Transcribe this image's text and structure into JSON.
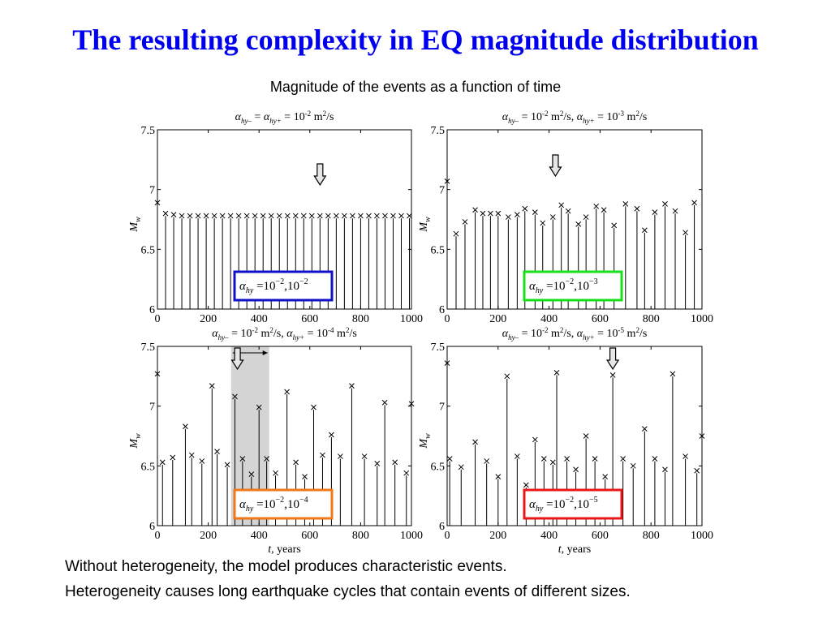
{
  "slide": {
    "title": "The resulting complexity in EQ magnitude distribution",
    "subtitle": "Magnitude of the events as a function of time",
    "captions": [
      "Without heterogeneity, the model produces characteristic events.",
      "Heterogeneity causes long earthquake cycles that contain events of different sizes."
    ]
  },
  "shared_axes": {
    "ylabel": "M",
    "ylabel_sub": "w",
    "xlabel": "t, years",
    "xticks": [
      0,
      200,
      400,
      600,
      800,
      1000
    ],
    "yticks": [
      "6",
      "6.5",
      "7",
      "7.5"
    ],
    "xlim": [
      0,
      1000
    ],
    "ylim": [
      6,
      7.5
    ],
    "label_var": "α",
    "label_sub_minus": "hy–",
    "label_sub_plus": "hy+",
    "box_var_sub": "hy",
    "box_base": "10"
  },
  "chart_data": [
    {
      "type": "scatter",
      "style": "stem",
      "marker": "x",
      "title_parts": {
        "mode": "equal",
        "value": "10",
        "exp": "-2",
        "unit": " m",
        "unit_exp": "2",
        "unit_tail": "/s"
      },
      "legend_box": {
        "exp1": "−2",
        "exp2": "−2",
        "color": "#1010c8"
      },
      "arrow_t": 640,
      "shaded": null,
      "x": [
        0,
        32,
        64,
        96,
        128,
        160,
        192,
        224,
        256,
        288,
        320,
        352,
        384,
        416,
        448,
        480,
        512,
        544,
        576,
        608,
        640,
        672,
        704,
        736,
        768,
        800,
        832,
        864,
        896,
        928,
        960,
        992
      ],
      "y": [
        6.89,
        6.8,
        6.79,
        6.78,
        6.78,
        6.78,
        6.78,
        6.78,
        6.78,
        6.78,
        6.78,
        6.78,
        6.78,
        6.78,
        6.78,
        6.78,
        6.78,
        6.78,
        6.78,
        6.78,
        6.78,
        6.78,
        6.78,
        6.78,
        6.78,
        6.78,
        6.78,
        6.78,
        6.78,
        6.78,
        6.78,
        6.78
      ]
    },
    {
      "type": "scatter",
      "style": "stem",
      "marker": "x",
      "title_parts": {
        "mode": "pair",
        "v1": "10",
        "e1": "-2",
        "v2": "10",
        "e2": "-3",
        "unit": " m",
        "unit_exp": "2",
        "unit_tail": "/s"
      },
      "legend_box": {
        "exp1": "−2",
        "exp2": "−3",
        "color": "#18e018"
      },
      "arrow_t": 425,
      "shaded": null,
      "x": [
        0,
        35,
        70,
        110,
        140,
        170,
        200,
        240,
        275,
        305,
        345,
        375,
        415,
        448,
        475,
        515,
        545,
        585,
        615,
        655,
        700,
        745,
        775,
        815,
        855,
        895,
        935,
        970
      ],
      "y": [
        7.07,
        6.63,
        6.73,
        6.83,
        6.8,
        6.8,
        6.8,
        6.77,
        6.79,
        6.84,
        6.81,
        6.72,
        6.77,
        6.87,
        6.82,
        6.71,
        6.77,
        6.86,
        6.83,
        6.7,
        6.88,
        6.84,
        6.66,
        6.81,
        6.88,
        6.82,
        6.64,
        6.89
      ]
    },
    {
      "type": "scatter",
      "style": "stem",
      "marker": "x",
      "title_parts": {
        "mode": "pair",
        "v1": "10",
        "e1": "-2",
        "v2": "10",
        "e2": "-4",
        "unit": " m",
        "unit_exp": "2",
        "unit_tail": "/s"
      },
      "legend_box": {
        "exp1": "−2",
        "exp2": "−4",
        "color": "#f07818"
      },
      "arrow_t": 315,
      "shaded": [
        290,
        440
      ],
      "x": [
        0,
        20,
        60,
        110,
        135,
        175,
        215,
        235,
        275,
        305,
        335,
        370,
        400,
        430,
        465,
        510,
        545,
        580,
        615,
        650,
        685,
        720,
        765,
        815,
        865,
        895,
        935,
        980,
        1010
      ],
      "y": [
        7.27,
        6.53,
        6.57,
        6.83,
        6.59,
        6.54,
        7.17,
        6.62,
        6.51,
        7.08,
        6.56,
        6.43,
        6.99,
        6.56,
        6.44,
        7.12,
        6.53,
        6.41,
        6.99,
        6.59,
        6.76,
        6.58,
        7.17,
        6.58,
        6.52,
        7.03,
        6.53,
        6.44,
        7.02
      ]
    },
    {
      "type": "scatter",
      "style": "stem",
      "marker": "x",
      "title_parts": {
        "mode": "pair",
        "v1": "10",
        "e1": "-2",
        "v2": "10",
        "e2": "-5",
        "unit": " m",
        "unit_exp": "2",
        "unit_tail": "/s"
      },
      "legend_box": {
        "exp1": "−2",
        "exp2": "−5",
        "color": "#e81818"
      },
      "arrow_t": 650,
      "shaded": null,
      "x": [
        0,
        10,
        55,
        110,
        155,
        200,
        235,
        275,
        310,
        345,
        380,
        415,
        430,
        470,
        505,
        545,
        580,
        620,
        650,
        690,
        730,
        775,
        815,
        855,
        885,
        935,
        980,
        1025
      ],
      "y": [
        7.36,
        6.56,
        6.49,
        6.7,
        6.54,
        6.41,
        7.25,
        6.58,
        6.34,
        6.72,
        6.56,
        6.53,
        7.28,
        6.56,
        6.47,
        6.75,
        6.56,
        6.41,
        7.26,
        6.56,
        6.5,
        6.81,
        6.56,
        6.47,
        7.27,
        6.58,
        6.46,
        6.75
      ]
    }
  ]
}
